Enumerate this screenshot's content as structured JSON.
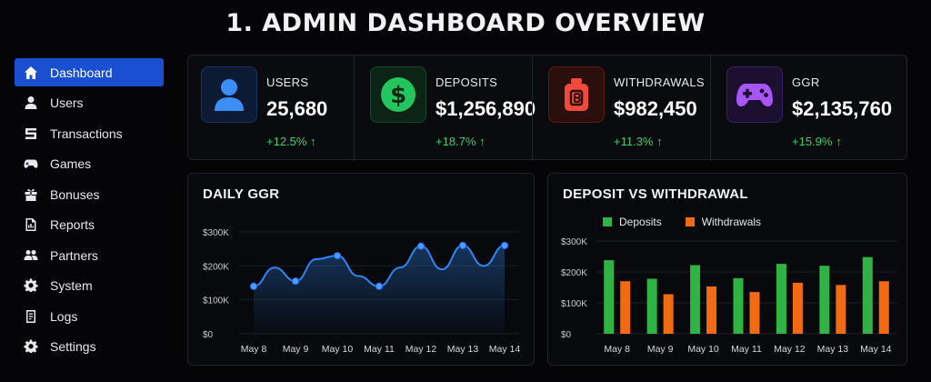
{
  "page": {
    "title": "1. ADMIN DASHBOARD OVERVIEW"
  },
  "sidebar": {
    "items": [
      {
        "label": "Dashboard",
        "icon": "home-icon",
        "active": true
      },
      {
        "label": "Users",
        "icon": "user-icon",
        "active": false
      },
      {
        "label": "Transactions",
        "icon": "transfer-icon",
        "active": false
      },
      {
        "label": "Games",
        "icon": "gamepad-icon",
        "active": false
      },
      {
        "label": "Bonuses",
        "icon": "gift-icon",
        "active": false
      },
      {
        "label": "Reports",
        "icon": "report-icon",
        "active": false
      },
      {
        "label": "Partners",
        "icon": "partners-icon",
        "active": false
      },
      {
        "label": "System",
        "icon": "gear-icon",
        "active": false
      },
      {
        "label": "Logs",
        "icon": "log-icon",
        "active": false
      },
      {
        "label": "Settings",
        "icon": "settings-icon",
        "active": false
      }
    ]
  },
  "stats": [
    {
      "label": "USERS",
      "value": "25,680",
      "change": "+12.5% ↑",
      "icon": "user-icon",
      "color": "#3a8ef5"
    },
    {
      "label": "DEPOSITS",
      "value": "$1,256,890",
      "change": "+18.7% ↑",
      "icon": "dollar-icon",
      "color": "#22c55e"
    },
    {
      "label": "WITHDRAWALS",
      "value": "$982,450",
      "change": "+11.3% ↑",
      "icon": "withdraw-bag-icon",
      "color": "#ef4a3a"
    },
    {
      "label": "GGR",
      "value": "$2,135,760",
      "change": "+15.9% ↑",
      "icon": "gamepad-icon",
      "color": "#a855f7"
    }
  ],
  "colors": {
    "positive": "#35d06a",
    "accent": "#1a4fd1",
    "ggr_line": "#2f86f0",
    "deposits": "#2fb344",
    "withdrawals": "#f26a12"
  },
  "chart_data": [
    {
      "type": "line",
      "title": "DAILY GGR",
      "categories": [
        "May 8",
        "May 9",
        "May 10",
        "May 11",
        "May 12",
        "May 13",
        "May 14"
      ],
      "x": [
        0,
        0.5,
        1,
        1.5,
        2,
        2.5,
        3,
        3.5,
        4,
        4.5,
        5,
        5.5,
        6
      ],
      "series": [
        {
          "values": [
            140,
            195,
            155,
            220,
            230,
            170,
            140,
            195,
            258,
            190,
            260,
            200,
            260
          ]
        }
      ],
      "yticks": [
        "$0",
        "$100K",
        "$200K",
        "$300K"
      ],
      "ylim": [
        0,
        300
      ],
      "grid": true
    },
    {
      "type": "bar",
      "title": "DEPOSIT VS WITHDRAWAL",
      "categories": [
        "May 8",
        "May 9",
        "May 10",
        "May 11",
        "May 12",
        "May 13",
        "May 14"
      ],
      "series": [
        {
          "name": "Deposits",
          "values": [
            238,
            178,
            222,
            180,
            226,
            220,
            248
          ]
        },
        {
          "name": "Withdrawals",
          "values": [
            170,
            128,
            153,
            135,
            165,
            158,
            170
          ]
        }
      ],
      "yticks": [
        "$0",
        "$100K",
        "$200K",
        "$300K"
      ],
      "ylim": [
        0,
        300
      ],
      "legend": "top-left",
      "grid": true
    }
  ]
}
